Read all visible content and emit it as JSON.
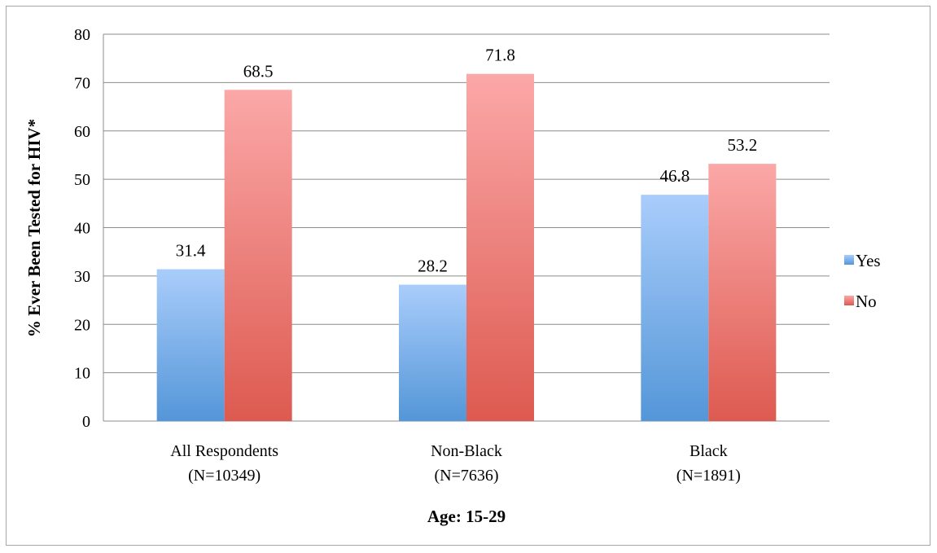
{
  "chart_data": {
    "type": "bar",
    "title": "",
    "xlabel": "Age: 15-29",
    "ylabel": "% Ever Been Tested for HIV*",
    "ylim": [
      0,
      80
    ],
    "yticks": [
      0,
      10,
      20,
      30,
      40,
      50,
      60,
      70,
      80
    ],
    "grid": true,
    "legend_position": "right",
    "categories": [
      [
        "All Respondents",
        "(N=10349)"
      ],
      [
        "Non-Black",
        "(N=7636)"
      ],
      [
        "Black",
        "(N=1891)"
      ]
    ],
    "series": [
      {
        "name": "Yes",
        "values": [
          31.4,
          28.2,
          46.8
        ],
        "color_top": "#a9cdfb",
        "color_bottom": "#5496d8"
      },
      {
        "name": "No",
        "values": [
          68.5,
          71.8,
          53.2
        ],
        "color_top": "#fba8a8",
        "color_bottom": "#dd5a50"
      }
    ]
  }
}
